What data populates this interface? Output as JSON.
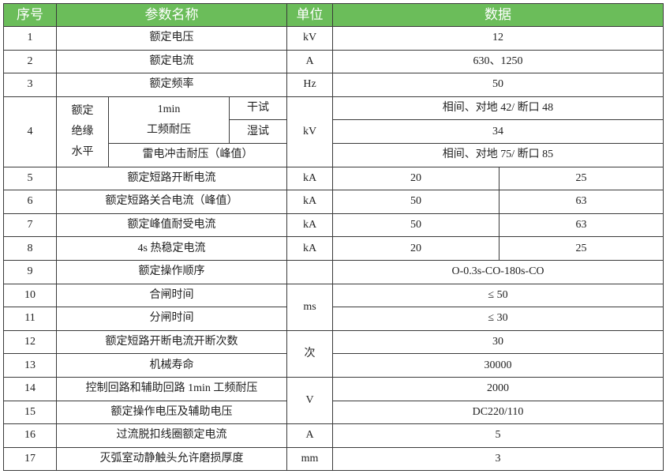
{
  "header": {
    "no": "序号",
    "name": "参数名称",
    "unit": "单位",
    "data": "数据"
  },
  "rows": [
    {
      "no": "1",
      "name": "额定电压",
      "unit": "kV",
      "value": "12"
    },
    {
      "no": "2",
      "name": "额定电流",
      "unit": "A",
      "value": "630、1250"
    },
    {
      "no": "3",
      "name": "额定频率",
      "unit": "Hz",
      "value": "50"
    },
    {
      "no": "4",
      "group": "额定绝缘水平",
      "group_lines": [
        "额定",
        "绝缘",
        "水平"
      ],
      "sub1": "1min",
      "sub1b": "工频耐压",
      "dry": "干试",
      "wet": "湿试",
      "lightning": "雷电冲击耐压（峰值）",
      "unit": "kV",
      "dry_value": "相间、对地 42/ 断口 48",
      "wet_value": "34",
      "lightning_value": "相间、对地 75/ 断口 85"
    },
    {
      "no": "5",
      "name": "额定短路开断电流",
      "unit": "kA",
      "v1": "20",
      "v2": "25"
    },
    {
      "no": "6",
      "name": "额定短路关合电流（峰值）",
      "unit": "kA",
      "v1": "50",
      "v2": "63"
    },
    {
      "no": "7",
      "name": "额定峰值耐受电流",
      "unit": "kA",
      "v1": "50",
      "v2": "63"
    },
    {
      "no": "8",
      "name": "4s 热稳定电流",
      "unit": "kA",
      "v1": "20",
      "v2": "25"
    },
    {
      "no": "9",
      "name": "额定操作顺序",
      "unit": "",
      "value": "O-0.3s-CO-180s-CO"
    },
    {
      "no": "10",
      "name": "合闸时间",
      "unit": "ms",
      "value": "≤ 50"
    },
    {
      "no": "11",
      "name": "分闸时间",
      "value": "≤ 30"
    },
    {
      "no": "12",
      "name": "额定短路开断电流开断次数",
      "unit": "次",
      "value": "30"
    },
    {
      "no": "13",
      "name": "机械寿命",
      "value": "30000"
    },
    {
      "no": "14",
      "name": "控制回路和辅助回路 1min 工频耐压",
      "unit": "V",
      "value": "2000"
    },
    {
      "no": "15",
      "name": "额定操作电压及辅助电压",
      "value": "DC220/110"
    },
    {
      "no": "16",
      "name": "过流脱扣线圈额定电流",
      "unit": "A",
      "value": "5"
    },
    {
      "no": "17",
      "name": "灭弧室动静触头允许磨损厚度",
      "unit": "mm",
      "value": "3"
    }
  ],
  "colors": {
    "header_bg": "#6bbd5a",
    "header_text": "#ffffff",
    "border": "#3a3a3a"
  }
}
